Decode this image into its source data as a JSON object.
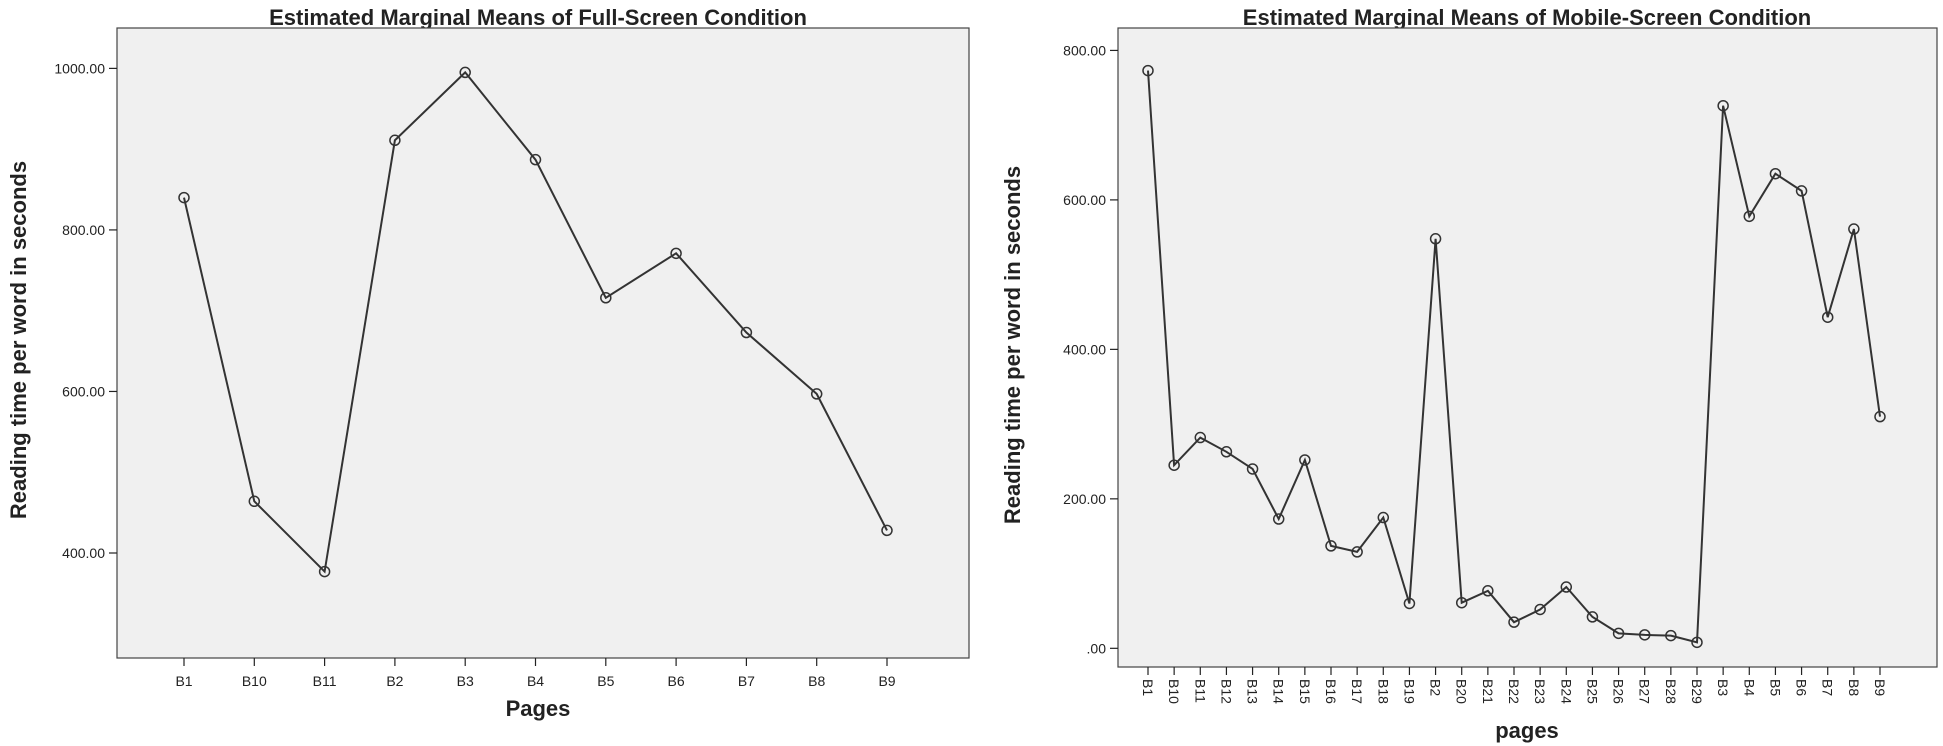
{
  "chart_data": [
    {
      "type": "line",
      "title": "Estimated Marginal Means of Full-Screen Condition",
      "xlabel": "Pages",
      "ylabel": "Reading time per word in seconds",
      "ylim": [
        270,
        1050
      ],
      "yticks": [
        400,
        600,
        800,
        1000
      ],
      "ytick_labels": [
        "400.00",
        "600.00",
        "800.00",
        "1000.00"
      ],
      "grid": false,
      "marker": "open-circle",
      "categories": [
        "B1",
        "B10",
        "B11",
        "B2",
        "B3",
        "B4",
        "B5",
        "B6",
        "B7",
        "B8",
        "B9"
      ],
      "values": [
        840,
        464,
        377,
        911,
        995,
        887,
        716,
        771,
        673,
        597,
        428
      ]
    },
    {
      "type": "line",
      "title": "Estimated Marginal Means of Mobile-Screen Condition",
      "xlabel": "pages",
      "ylabel": "Reading time per word in seconds",
      "ylim": [
        -25,
        830
      ],
      "yticks": [
        0,
        200,
        400,
        600,
        800
      ],
      "ytick_labels": [
        ".00",
        "200.00",
        "400.00",
        "600.00",
        "800.00"
      ],
      "grid": false,
      "marker": "open-circle",
      "categories": [
        "B1",
        "B10",
        "B11",
        "B12",
        "B13",
        "B14",
        "B15",
        "B16",
        "B17",
        "B18",
        "B19",
        "B2",
        "B20",
        "B21",
        "B22",
        "B23",
        "B24",
        "B25",
        "B26",
        "B27",
        "B28",
        "B29",
        "B3",
        "B4",
        "B5",
        "B6",
        "B7",
        "B8",
        "B9"
      ],
      "values": [
        773,
        245,
        282,
        263,
        240,
        173,
        252,
        137,
        129,
        175,
        60,
        548,
        61,
        77,
        35,
        52,
        82,
        42,
        20,
        18,
        17,
        8,
        726,
        578,
        635,
        612,
        443,
        561,
        310
      ]
    }
  ]
}
